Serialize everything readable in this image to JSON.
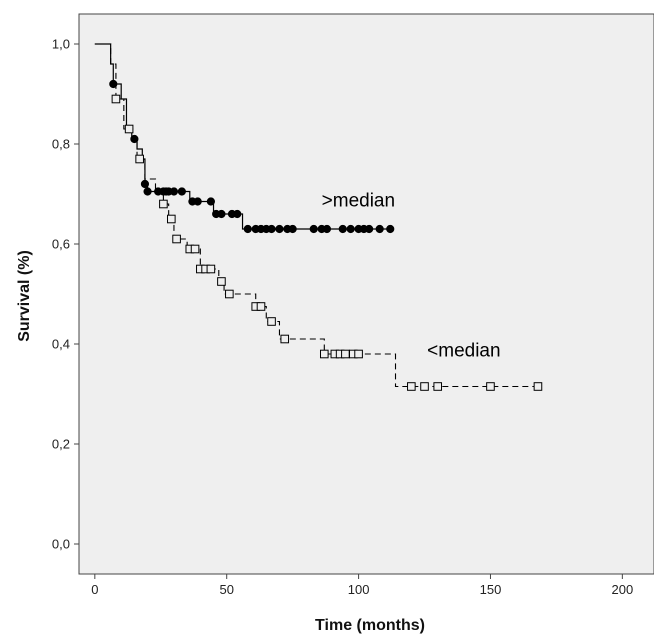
{
  "chart_data": {
    "type": "line",
    "title": "",
    "xlabel": "Time (months)",
    "ylabel": "Survival (%)",
    "xlim": [
      -6,
      212
    ],
    "ylim": [
      -0.06,
      1.06
    ],
    "xticks": [
      0,
      50,
      100,
      150,
      200
    ],
    "xtick_labels": [
      "0",
      "50",
      "100",
      "150",
      "200"
    ],
    "yticks": [
      0.0,
      0.2,
      0.4,
      0.6,
      0.8,
      1.0
    ],
    "ytick_labels": [
      "0,0",
      "0,2",
      "0,4",
      "0,6",
      "0,8",
      "1,0"
    ],
    "grid": false,
    "plot_background": "#efefef",
    "series": [
      {
        "key": "above",
        "line_style": "solid",
        "marker": "filled-circle",
        "color": "#000000",
        "steps": [
          [
            0,
            1.0
          ],
          [
            6,
            1.0
          ],
          [
            6,
            0.96
          ],
          [
            7,
            0.96
          ],
          [
            7,
            0.92
          ],
          [
            10,
            0.92
          ],
          [
            10,
            0.89
          ],
          [
            12,
            0.89
          ],
          [
            12,
            0.83
          ],
          [
            14,
            0.83
          ],
          [
            14,
            0.81
          ],
          [
            16,
            0.81
          ],
          [
            16,
            0.79
          ],
          [
            18,
            0.79
          ],
          [
            18,
            0.77
          ],
          [
            19,
            0.77
          ],
          [
            19,
            0.72
          ],
          [
            20,
            0.72
          ],
          [
            20,
            0.705
          ],
          [
            36,
            0.705
          ],
          [
            36,
            0.685
          ],
          [
            45,
            0.685
          ],
          [
            45,
            0.66
          ],
          [
            56,
            0.66
          ],
          [
            56,
            0.63
          ],
          [
            112,
            0.63
          ]
        ],
        "censor_times": [
          7,
          13,
          15,
          19,
          20,
          24,
          26,
          27,
          28,
          30,
          33,
          37,
          39,
          44,
          46,
          48,
          52,
          54,
          58,
          61,
          63,
          65,
          67,
          70,
          73,
          75,
          83,
          86,
          88,
          94,
          97,
          100,
          102,
          104,
          108,
          112
        ]
      },
      {
        "key": "below",
        "line_style": "dashed",
        "marker": "open-square",
        "color": "#000000",
        "steps": [
          [
            0,
            1.0
          ],
          [
            6,
            1.0
          ],
          [
            6,
            0.96
          ],
          [
            8,
            0.96
          ],
          [
            8,
            0.89
          ],
          [
            11,
            0.89
          ],
          [
            11,
            0.83
          ],
          [
            14,
            0.83
          ],
          [
            14,
            0.81
          ],
          [
            16,
            0.81
          ],
          [
            16,
            0.77
          ],
          [
            19,
            0.77
          ],
          [
            19,
            0.73
          ],
          [
            23,
            0.73
          ],
          [
            23,
            0.71
          ],
          [
            26,
            0.71
          ],
          [
            26,
            0.68
          ],
          [
            28,
            0.68
          ],
          [
            28,
            0.65
          ],
          [
            30,
            0.65
          ],
          [
            30,
            0.61
          ],
          [
            35,
            0.61
          ],
          [
            35,
            0.59
          ],
          [
            40,
            0.59
          ],
          [
            40,
            0.55
          ],
          [
            47,
            0.55
          ],
          [
            47,
            0.525
          ],
          [
            49,
            0.525
          ],
          [
            49,
            0.5
          ],
          [
            61,
            0.5
          ],
          [
            61,
            0.475
          ],
          [
            65,
            0.475
          ],
          [
            65,
            0.445
          ],
          [
            70,
            0.445
          ],
          [
            70,
            0.41
          ],
          [
            87,
            0.41
          ],
          [
            87,
            0.38
          ],
          [
            114,
            0.38
          ],
          [
            114,
            0.315
          ],
          [
            169,
            0.315
          ]
        ],
        "censor_times": [
          8,
          13,
          17,
          26,
          29,
          31,
          36,
          38,
          40,
          42,
          44,
          48,
          51,
          61,
          63,
          67,
          72,
          87,
          91,
          93,
          95,
          98,
          100,
          120,
          125,
          130,
          150,
          168
        ]
      }
    ],
    "annotations": [
      {
        "text": ">median",
        "x": 86,
        "y": 0.675
      },
      {
        "text": "<median",
        "x": 126,
        "y": 0.375
      }
    ]
  }
}
